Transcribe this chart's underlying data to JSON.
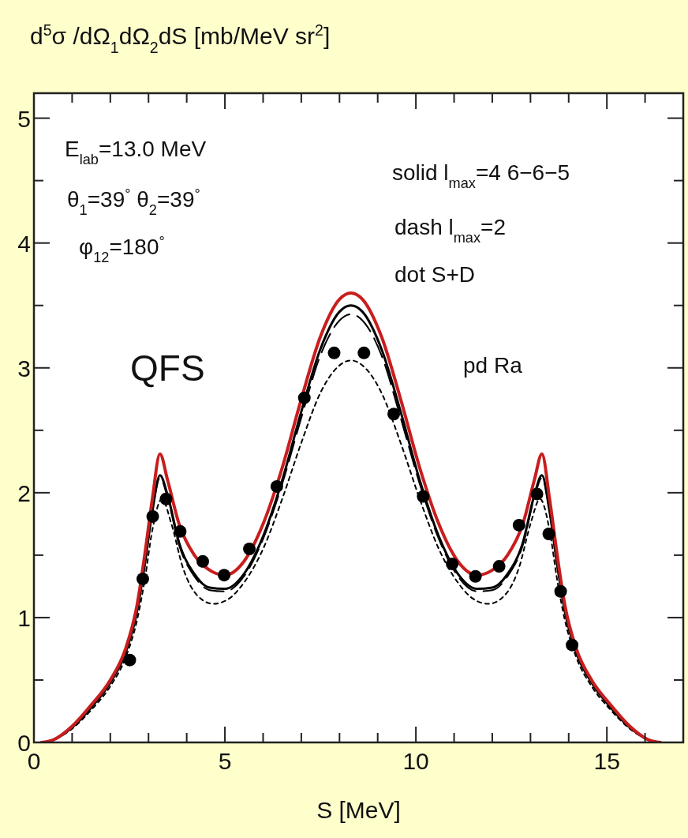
{
  "chart_data": {
    "type": "line",
    "ylabel": "d$^{5}$σ /dΩ$_{1}$dΩ$_{2}$dS  [mb/MeV sr$^{2}$]",
    "xlabel": "S [MeV]",
    "xlim": [
      0,
      17
    ],
    "ylim": [
      0,
      5.2
    ],
    "xticks": [
      0,
      {
        "value": 1,
        "label": null
      },
      {
        "value": 2,
        "label": null
      },
      {
        "value": 3,
        "label": null
      },
      {
        "value": 4,
        "label": null
      },
      5,
      {
        "value": 6,
        "label": null
      },
      {
        "value": 7,
        "label": null
      },
      {
        "value": 8,
        "label": null
      },
      {
        "value": 9,
        "label": null
      },
      10,
      {
        "value": 11,
        "label": null
      },
      {
        "value": 12,
        "label": null
      },
      {
        "value": 13,
        "label": null
      },
      {
        "value": 14,
        "label": null
      },
      15,
      {
        "value": 16,
        "label": null
      }
    ],
    "yticks": [
      0,
      {
        "value": 0.5,
        "label": null
      },
      1,
      {
        "value": 1.5,
        "label": null
      },
      2,
      {
        "value": 2.5,
        "label": null
      },
      3,
      {
        "value": 3.5,
        "label": null
      },
      4,
      {
        "value": 4.5,
        "label": null
      },
      5
    ],
    "grid": false,
    "legend": false,
    "annotations": [
      "E$_{lab}$=13.0 MeV",
      "θ$_{1}$=39$^{°}$   θ$_{2}$=39$^{°}$",
      "φ$_{12}$=180$^{°}$",
      "solid l$_{max}$=4 6−6−5",
      "dash l$_{max}$=2",
      "dot S+D",
      "QFS",
      "pd Ra"
    ],
    "series": [
      {
        "line_style": "dotted",
        "color": "#000000",
        "x": [
          0.2,
          0.5,
          1.0,
          1.5,
          2.0,
          2.4,
          2.7,
          2.9,
          3.1,
          3.35,
          3.6,
          3.9,
          4.3,
          4.7,
          5.1,
          5.5,
          6.0,
          6.5,
          7.0,
          7.5,
          8.0,
          8.3,
          8.6,
          9.1,
          9.6,
          10.1,
          10.6,
          11.1,
          11.5,
          11.9,
          12.3,
          12.7,
          13.0,
          13.25,
          13.5,
          13.7,
          13.9,
          14.2,
          14.6,
          15.1,
          15.6,
          16.1,
          16.4
        ],
        "values": [
          0,
          0.02,
          0.11,
          0.26,
          0.45,
          0.68,
          0.98,
          1.3,
          1.7,
          1.95,
          1.75,
          1.4,
          1.17,
          1.11,
          1.15,
          1.28,
          1.55,
          1.95,
          2.4,
          2.8,
          3.02,
          3.06,
          3.02,
          2.8,
          2.4,
          1.95,
          1.55,
          1.28,
          1.15,
          1.11,
          1.17,
          1.4,
          1.75,
          1.95,
          1.7,
          1.3,
          0.98,
          0.68,
          0.45,
          0.26,
          0.11,
          0.02,
          0
        ]
      },
      {
        "line_style": "dashed",
        "color": "#000000",
        "x": [
          0.2,
          0.5,
          1.0,
          1.5,
          2.0,
          2.4,
          2.7,
          2.9,
          3.1,
          3.3,
          3.5,
          3.8,
          4.2,
          4.6,
          5.0,
          5.5,
          6.0,
          6.5,
          7.0,
          7.5,
          8.0,
          8.3,
          8.6,
          9.1,
          9.6,
          10.1,
          10.6,
          11.1,
          11.6,
          12.0,
          12.4,
          12.8,
          13.1,
          13.3,
          13.5,
          13.7,
          13.9,
          14.2,
          14.6,
          15.1,
          15.6,
          16.1,
          16.4
        ],
        "values": [
          0,
          0.02,
          0.12,
          0.28,
          0.48,
          0.72,
          1.05,
          1.42,
          1.85,
          2.12,
          1.96,
          1.58,
          1.33,
          1.22,
          1.21,
          1.33,
          1.63,
          2.07,
          2.6,
          3.1,
          3.38,
          3.43,
          3.38,
          3.1,
          2.6,
          2.07,
          1.63,
          1.33,
          1.21,
          1.22,
          1.33,
          1.58,
          1.96,
          2.12,
          1.85,
          1.42,
          1.05,
          0.72,
          0.48,
          0.28,
          0.12,
          0.02,
          0
        ]
      },
      {
        "line_style": "solid",
        "color": "#000000",
        "x": [
          0.2,
          0.5,
          1.0,
          1.5,
          2.0,
          2.4,
          2.7,
          2.9,
          3.1,
          3.3,
          3.5,
          3.8,
          4.2,
          4.6,
          5.0,
          5.5,
          6.0,
          6.5,
          7.0,
          7.5,
          8.0,
          8.3,
          8.6,
          9.1,
          9.6,
          10.1,
          10.6,
          11.1,
          11.6,
          12.0,
          12.4,
          12.8,
          13.1,
          13.3,
          13.5,
          13.7,
          13.9,
          14.2,
          14.6,
          15.1,
          15.6,
          16.1,
          16.4
        ],
        "values": [
          0,
          0.02,
          0.12,
          0.28,
          0.48,
          0.72,
          1.05,
          1.42,
          1.85,
          2.14,
          1.98,
          1.6,
          1.35,
          1.24,
          1.23,
          1.35,
          1.65,
          2.1,
          2.65,
          3.15,
          3.45,
          3.5,
          3.45,
          3.15,
          2.65,
          2.1,
          1.65,
          1.35,
          1.23,
          1.24,
          1.35,
          1.6,
          1.98,
          2.14,
          1.85,
          1.42,
          1.05,
          0.72,
          0.48,
          0.28,
          0.12,
          0.02,
          0
        ]
      },
      {
        "line_style": "solid",
        "color": "#c81e1e",
        "x": [
          0.2,
          0.5,
          1.0,
          1.5,
          2.0,
          2.4,
          2.7,
          2.9,
          3.1,
          3.3,
          3.5,
          3.8,
          4.2,
          4.6,
          5.0,
          5.5,
          6.0,
          6.5,
          7.0,
          7.5,
          8.0,
          8.3,
          8.6,
          9.1,
          9.6,
          10.1,
          10.6,
          11.1,
          11.6,
          12.0,
          12.4,
          12.8,
          13.1,
          13.3,
          13.5,
          13.7,
          13.9,
          14.2,
          14.6,
          15.1,
          15.6,
          16.1,
          16.4
        ],
        "values": [
          0,
          0.02,
          0.13,
          0.3,
          0.5,
          0.75,
          1.1,
          1.5,
          1.95,
          2.31,
          2.1,
          1.75,
          1.5,
          1.38,
          1.34,
          1.45,
          1.75,
          2.2,
          2.75,
          3.25,
          3.55,
          3.6,
          3.55,
          3.25,
          2.75,
          2.2,
          1.75,
          1.45,
          1.34,
          1.38,
          1.5,
          1.75,
          2.1,
          2.31,
          1.95,
          1.5,
          1.1,
          0.75,
          0.5,
          0.3,
          0.13,
          0.02,
          0
        ]
      },
      {
        "type": "scatter",
        "marker": "circle",
        "color": "#000000",
        "x": [
          2.51,
          2.85,
          3.11,
          3.46,
          3.83,
          4.42,
          4.98,
          5.64,
          6.36,
          7.08,
          7.86,
          8.64,
          9.42,
          10.19,
          10.95,
          11.56,
          12.18,
          12.7,
          13.17,
          13.48,
          13.79,
          14.09
        ],
        "values": [
          0.66,
          1.31,
          1.81,
          1.95,
          1.69,
          1.45,
          1.34,
          1.55,
          2.05,
          2.76,
          3.12,
          3.12,
          2.63,
          1.97,
          1.43,
          1.33,
          1.41,
          1.74,
          1.99,
          1.67,
          1.21,
          0.78
        ]
      }
    ]
  }
}
